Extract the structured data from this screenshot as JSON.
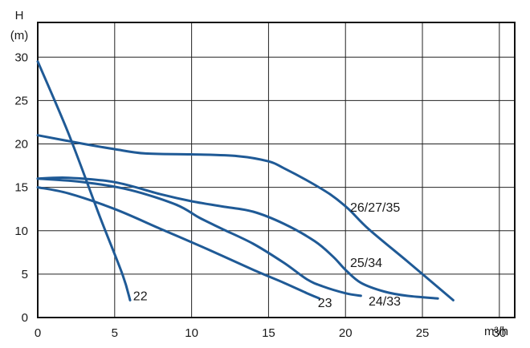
{
  "chart_data": {
    "type": "line",
    "grid": true,
    "colors": {
      "curve": "#1f5a96",
      "grid": "#222222",
      "frame": "#111111",
      "text": "#1a1a1a"
    },
    "ylabel_line1": "H",
    "ylabel_line2": "(m)",
    "xlabel": "m³/h",
    "xlim": [
      0,
      31
    ],
    "ylim": [
      0,
      34
    ],
    "xticks": [
      0,
      5,
      10,
      15,
      20,
      25,
      30
    ],
    "yticks": [
      0,
      5,
      10,
      15,
      20,
      25,
      30
    ],
    "series": [
      {
        "name": "22",
        "points": [
          [
            0,
            29.5
          ],
          [
            2,
            21.2
          ],
          [
            4,
            11.8
          ],
          [
            5.5,
            5.0
          ],
          [
            6.0,
            2.0
          ]
        ],
        "label_at": [
          6.2,
          2.0
        ]
      },
      {
        "name": "23",
        "points": [
          [
            0,
            15.0
          ],
          [
            2,
            14.3
          ],
          [
            5,
            12.5
          ],
          [
            8,
            10.2
          ],
          [
            11,
            7.9
          ],
          [
            14,
            5.5
          ],
          [
            16,
            4.0
          ],
          [
            17.5,
            2.8
          ],
          [
            18.3,
            2.2
          ]
        ],
        "label_at": [
          18.2,
          1.2
        ]
      },
      {
        "name": "24/33",
        "points": [
          [
            0,
            16.0
          ],
          [
            3,
            15.6
          ],
          [
            6,
            14.7
          ],
          [
            9,
            13.0
          ],
          [
            10.5,
            11.5
          ],
          [
            12,
            10.2
          ],
          [
            14,
            8.5
          ],
          [
            16,
            6.3
          ],
          [
            17.5,
            4.4
          ],
          [
            18.5,
            3.6
          ],
          [
            20,
            2.8
          ],
          [
            21.0,
            2.5
          ]
        ],
        "label_at": [
          21.5,
          1.4
        ]
      },
      {
        "name": "25/34",
        "points": [
          [
            0,
            16.0
          ],
          [
            2,
            16.1
          ],
          [
            5,
            15.6
          ],
          [
            8,
            14.2
          ],
          [
            10,
            13.4
          ],
          [
            12,
            12.8
          ],
          [
            14,
            12.2
          ],
          [
            16,
            10.8
          ],
          [
            18,
            8.8
          ],
          [
            19.2,
            7.0
          ],
          [
            20,
            5.5
          ],
          [
            21,
            4.0
          ],
          [
            22.5,
            3.0
          ],
          [
            24,
            2.5
          ],
          [
            26,
            2.2
          ]
        ],
        "label_at": [
          20.3,
          5.8
        ]
      },
      {
        "name": "26/27/35",
        "points": [
          [
            0,
            21.0
          ],
          [
            3,
            20.0
          ],
          [
            5,
            19.4
          ],
          [
            7,
            18.9
          ],
          [
            10,
            18.8
          ],
          [
            13,
            18.6
          ],
          [
            15,
            18.0
          ],
          [
            16,
            17.2
          ],
          [
            17.5,
            15.8
          ],
          [
            19,
            14.2
          ],
          [
            20.2,
            12.5
          ],
          [
            21.5,
            10.2
          ],
          [
            24,
            6.5
          ],
          [
            27,
            2.0
          ]
        ],
        "label_at": [
          20.3,
          12.2
        ]
      }
    ]
  }
}
